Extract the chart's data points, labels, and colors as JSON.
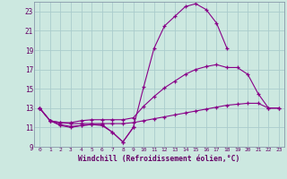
{
  "xlabel": "Windchill (Refroidissement éolien,°C)",
  "bg_color": "#cce8e0",
  "grid_color": "#aacccc",
  "line_color": "#880088",
  "xlim": [
    -0.5,
    23.5
  ],
  "ylim": [
    9,
    24
  ],
  "yticks": [
    9,
    11,
    13,
    15,
    17,
    19,
    21,
    23
  ],
  "xticks": [
    0,
    1,
    2,
    3,
    4,
    5,
    6,
    7,
    8,
    9,
    10,
    11,
    12,
    13,
    14,
    15,
    16,
    17,
    18,
    19,
    20,
    21,
    22,
    23
  ],
  "line1_x": [
    0,
    1,
    2,
    3,
    4,
    5,
    6,
    7,
    8,
    9,
    10,
    11,
    12,
    13,
    14,
    15,
    16,
    17,
    18
  ],
  "line1_y": [
    13.0,
    11.7,
    11.3,
    11.1,
    11.2,
    11.3,
    11.3,
    10.5,
    9.5,
    11.0,
    15.2,
    19.2,
    21.5,
    22.5,
    23.5,
    23.8,
    23.2,
    21.8,
    19.2
  ],
  "line2_x": [
    0,
    1,
    2,
    3,
    4,
    5,
    6,
    7,
    8,
    9,
    10,
    11,
    12,
    13,
    14,
    15,
    16,
    17,
    18,
    19,
    20,
    21,
    22,
    23
  ],
  "line2_y": [
    13.0,
    11.7,
    11.5,
    11.5,
    11.7,
    11.8,
    11.8,
    11.8,
    11.8,
    12.0,
    13.2,
    14.2,
    15.1,
    15.8,
    16.5,
    17.0,
    17.3,
    17.5,
    17.2,
    17.2,
    16.5,
    14.5,
    13.0,
    13.0
  ],
  "line3_x": [
    0,
    1,
    2,
    3,
    4,
    5,
    6,
    7,
    8,
    9,
    10,
    11,
    12,
    13,
    14,
    15,
    16,
    17,
    18,
    19,
    20,
    21,
    22,
    23
  ],
  "line3_y": [
    13.0,
    11.7,
    11.5,
    11.4,
    11.4,
    11.4,
    11.4,
    11.4,
    11.4,
    11.5,
    11.7,
    11.9,
    12.1,
    12.3,
    12.5,
    12.7,
    12.9,
    13.1,
    13.3,
    13.4,
    13.5,
    13.5,
    13.0,
    13.0
  ],
  "line4_x": [
    0,
    1,
    2,
    3,
    4,
    5,
    6,
    7,
    8,
    9
  ],
  "line4_y": [
    13.0,
    11.7,
    11.2,
    11.0,
    11.2,
    11.3,
    11.2,
    10.5,
    9.5,
    11.0
  ]
}
